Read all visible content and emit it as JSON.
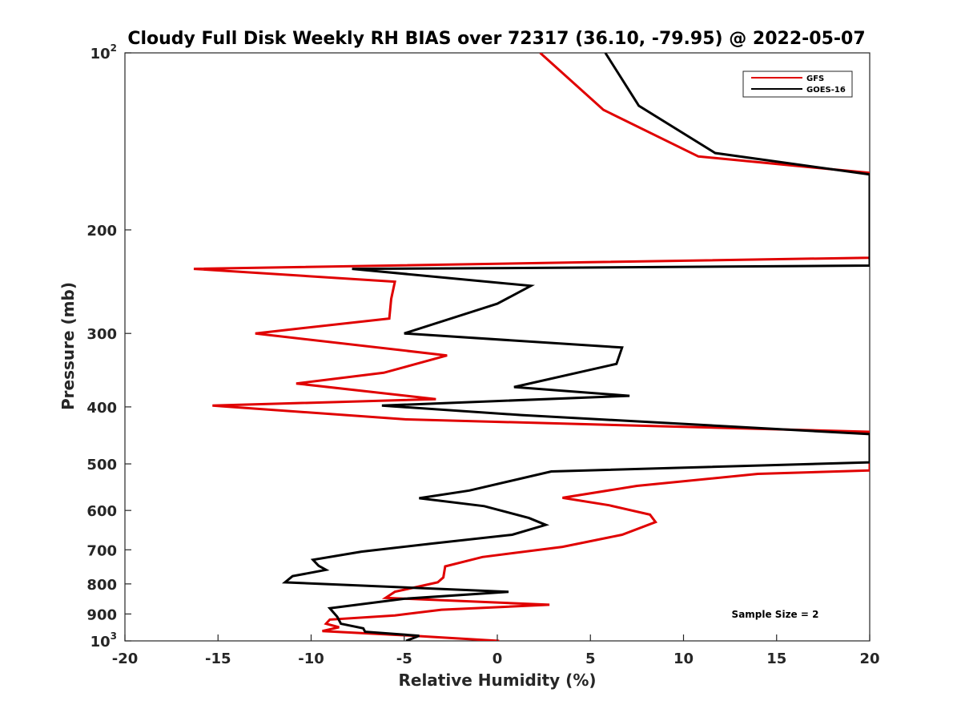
{
  "chart_data": {
    "type": "line",
    "title": "Cloudy Full Disk Weekly RH BIAS over 72317 (36.10, -79.95) @ 2022-05-07",
    "xlabel": "Relative Humidity (%)",
    "ylabel": "Pressure (mb)",
    "xlim": [
      -20,
      20
    ],
    "ylim": [
      100,
      1000
    ],
    "yscale": "log",
    "yreversed": true,
    "xticks": [
      -20,
      -15,
      -10,
      -5,
      0,
      5,
      10,
      15,
      20
    ],
    "xtick_labels": [
      "-20",
      "-15",
      "-10",
      "-5",
      "0",
      "5",
      "10",
      "15",
      "20"
    ],
    "yticks": [
      100,
      200,
      300,
      400,
      500,
      600,
      700,
      800,
      900,
      1000
    ],
    "ytick_labels": [
      {
        "base": "10",
        "sup": "2"
      },
      {
        "base": "200"
      },
      {
        "base": "300"
      },
      {
        "base": "400"
      },
      {
        "base": "500"
      },
      {
        "base": "600"
      },
      {
        "base": "700"
      },
      {
        "base": "800"
      },
      {
        "base": "900"
      },
      {
        "base": "10",
        "sup": "3"
      }
    ],
    "grid": false,
    "legend_position": "top-right",
    "annotation": "Sample Size = 2",
    "series": [
      {
        "name": "GFS",
        "color": "#e00000",
        "points": [
          [
            2.3,
            100
          ],
          [
            5.7,
            125
          ],
          [
            10.8,
            150
          ],
          [
            20.0,
            160
          ],
          [
            20.0,
            223
          ],
          [
            5.0,
            227
          ],
          [
            -16.3,
            233
          ],
          [
            -5.5,
            245
          ],
          [
            -5.7,
            262
          ],
          [
            -5.8,
            283
          ],
          [
            -13.0,
            300
          ],
          [
            -2.7,
            327
          ],
          [
            -6.1,
            350
          ],
          [
            -10.8,
            365
          ],
          [
            -3.3,
            388
          ],
          [
            -15.3,
            398
          ],
          [
            -4.9,
            420
          ],
          [
            20.0,
            441
          ],
          [
            20.0,
            513
          ],
          [
            14.0,
            520
          ],
          [
            7.5,
            545
          ],
          [
            3.5,
            571
          ],
          [
            6.0,
            588
          ],
          [
            8.2,
            610
          ],
          [
            8.5,
            628
          ],
          [
            6.7,
            660
          ],
          [
            3.5,
            692
          ],
          [
            -0.8,
            720
          ],
          [
            -2.8,
            747
          ],
          [
            -2.9,
            780
          ],
          [
            -3.2,
            795
          ],
          [
            -5.5,
            825
          ],
          [
            -6.0,
            845
          ],
          [
            2.8,
            868
          ],
          [
            -3.0,
            885
          ],
          [
            -5.5,
            905
          ],
          [
            -9.0,
            920
          ],
          [
            -9.2,
            935
          ],
          [
            -8.5,
            948
          ],
          [
            -9.4,
            962
          ],
          [
            -4.5,
            980
          ],
          [
            0.1,
            1000
          ]
        ]
      },
      {
        "name": "GOES-16",
        "color": "#000000",
        "points": [
          [
            5.8,
            100
          ],
          [
            7.6,
            123
          ],
          [
            11.7,
            148
          ],
          [
            20.0,
            161
          ],
          [
            20.0,
            230
          ],
          [
            3.0,
            232
          ],
          [
            -7.8,
            233
          ],
          [
            1.8,
            249
          ],
          [
            0.0,
            267
          ],
          [
            -5.0,
            300
          ],
          [
            6.7,
            317
          ],
          [
            6.4,
            338
          ],
          [
            0.9,
            370
          ],
          [
            7.1,
            383
          ],
          [
            -6.2,
            398
          ],
          [
            1.3,
            413
          ],
          [
            20.0,
            445
          ],
          [
            20.0,
            497
          ],
          [
            2.9,
            515
          ],
          [
            -1.5,
            555
          ],
          [
            -4.2,
            572
          ],
          [
            -0.7,
            590
          ],
          [
            1.7,
            618
          ],
          [
            2.6,
            635
          ],
          [
            0.8,
            660
          ],
          [
            -3.5,
            683
          ],
          [
            -7.3,
            705
          ],
          [
            -9.9,
            728
          ],
          [
            -9.6,
            745
          ],
          [
            -9.2,
            757
          ],
          [
            -11.0,
            776
          ],
          [
            -11.4,
            795
          ],
          [
            0.6,
            825
          ],
          [
            -5.0,
            848
          ],
          [
            -9.0,
            880
          ],
          [
            -8.6,
            910
          ],
          [
            -8.4,
            935
          ],
          [
            -7.2,
            952
          ],
          [
            -7.1,
            965
          ],
          [
            -4.2,
            980
          ],
          [
            -4.9,
            1000
          ]
        ]
      }
    ]
  }
}
